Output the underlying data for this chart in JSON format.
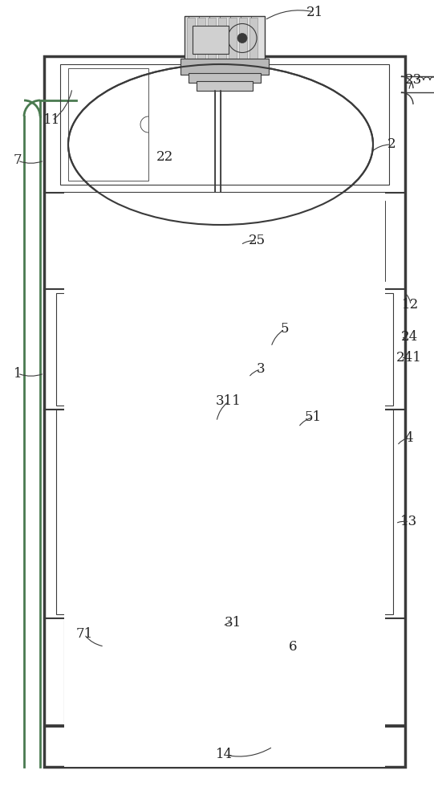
{
  "bg_color": "#ffffff",
  "line_color": "#3a3a3a",
  "green_color": "#4a7a50",
  "label_color": "#222222",
  "fig_w": 5.41,
  "fig_h": 10.0,
  "dpi": 100
}
